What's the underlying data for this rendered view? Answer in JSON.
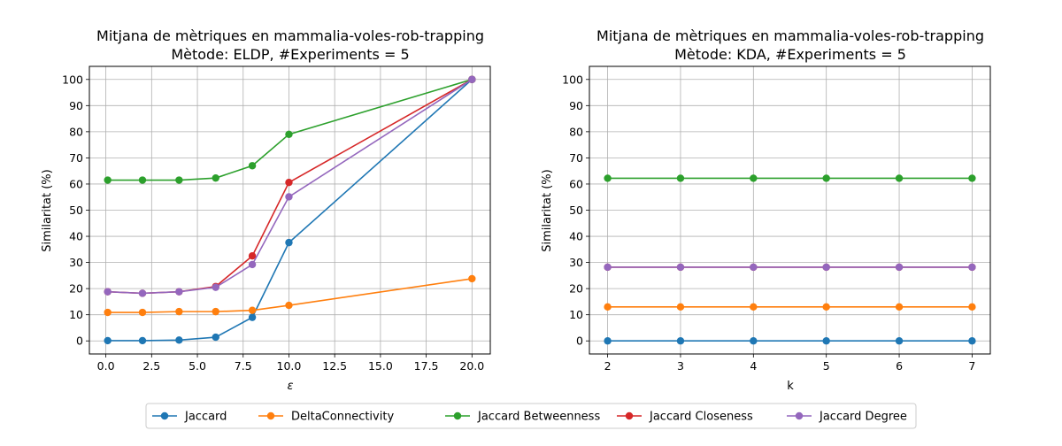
{
  "chart_data": [
    {
      "type": "line",
      "title": "Mitjana de mètriques en mammalia-voles-rob-trapping",
      "subtitle": "Mètode: ELDP, #Experiments = 5",
      "xlabel": "ε",
      "ylabel": "Similaritat (%)",
      "x": [
        0.1,
        2,
        4,
        6,
        8,
        10,
        20
      ],
      "xlim": [
        -0.9,
        21.0
      ],
      "ylim": [
        -5,
        105
      ],
      "xticks": [
        0.0,
        2.5,
        5.0,
        7.5,
        10.0,
        12.5,
        15.0,
        17.5,
        20.0
      ],
      "xtick_labels": [
        "0.0",
        "2.5",
        "5.0",
        "7.5",
        "10.0",
        "12.5",
        "15.0",
        "17.5",
        "20.0"
      ],
      "yticks": [
        0,
        10,
        20,
        30,
        40,
        50,
        60,
        70,
        80,
        90,
        100
      ],
      "ytick_labels": [
        "0",
        "10",
        "20",
        "30",
        "40",
        "50",
        "60",
        "70",
        "80",
        "90",
        "100"
      ],
      "grid": true,
      "series": [
        {
          "name": "Jaccard",
          "color": "#1f77b4",
          "values": [
            0.1,
            0.1,
            0.3,
            1.4,
            9.0,
            37.6,
            100.0
          ]
        },
        {
          "name": "DeltaConnectivity",
          "color": "#ff7f0e",
          "values": [
            10.9,
            10.9,
            11.2,
            11.2,
            11.7,
            13.6,
            23.8
          ]
        },
        {
          "name": "Jaccard Betweenness",
          "color": "#2ca02c",
          "values": [
            61.5,
            61.5,
            61.5,
            62.3,
            67.0,
            79.0,
            100.0
          ]
        },
        {
          "name": "Jaccard Closeness",
          "color": "#d62728",
          "values": [
            18.8,
            18.2,
            18.8,
            20.8,
            32.5,
            60.6,
            100.0
          ]
        },
        {
          "name": "Jaccard Degree",
          "color": "#9467bd",
          "values": [
            18.8,
            18.2,
            18.8,
            20.5,
            29.2,
            55.1,
            100.0
          ]
        }
      ]
    },
    {
      "type": "line",
      "title": "Mitjana de mètriques en mammalia-voles-rob-trapping",
      "subtitle": "Mètode: KDA, #Experiments = 5",
      "xlabel": "k",
      "ylabel": "Similaritat (%)",
      "x": [
        2,
        3,
        4,
        5,
        6,
        7
      ],
      "xlim": [
        1.75,
        7.25
      ],
      "ylim": [
        -5,
        105
      ],
      "xticks": [
        2,
        3,
        4,
        5,
        6,
        7
      ],
      "xtick_labels": [
        "2",
        "3",
        "4",
        "5",
        "6",
        "7"
      ],
      "yticks": [
        0,
        10,
        20,
        30,
        40,
        50,
        60,
        70,
        80,
        90,
        100
      ],
      "ytick_labels": [
        "0",
        "10",
        "20",
        "30",
        "40",
        "50",
        "60",
        "70",
        "80",
        "90",
        "100"
      ],
      "grid": true,
      "series": [
        {
          "name": "Jaccard",
          "color": "#1f77b4",
          "values": [
            0.0,
            0.0,
            0.0,
            0.0,
            0.0,
            0.0
          ]
        },
        {
          "name": "DeltaConnectivity",
          "color": "#ff7f0e",
          "values": [
            13.0,
            13.0,
            13.0,
            13.0,
            13.0,
            13.0
          ]
        },
        {
          "name": "Jaccard Betweenness",
          "color": "#2ca02c",
          "values": [
            62.2,
            62.2,
            62.2,
            62.2,
            62.2,
            62.2
          ]
        },
        {
          "name": "Jaccard Closeness",
          "color": "#d62728",
          "values": [
            28.2,
            28.2,
            28.2,
            28.2,
            28.2,
            28.2
          ]
        },
        {
          "name": "Jaccard Degree",
          "color": "#9467bd",
          "values": [
            28.2,
            28.2,
            28.2,
            28.2,
            28.2,
            28.2
          ]
        }
      ]
    }
  ],
  "legend": {
    "placement": "bottom-center",
    "items": [
      {
        "label": "Jaccard",
        "color": "#1f77b4"
      },
      {
        "label": "DeltaConnectivity",
        "color": "#ff7f0e"
      },
      {
        "label": "Jaccard Betweenness",
        "color": "#2ca02c"
      },
      {
        "label": "Jaccard Closeness",
        "color": "#d62728"
      },
      {
        "label": "Jaccard Degree",
        "color": "#9467bd"
      }
    ]
  }
}
